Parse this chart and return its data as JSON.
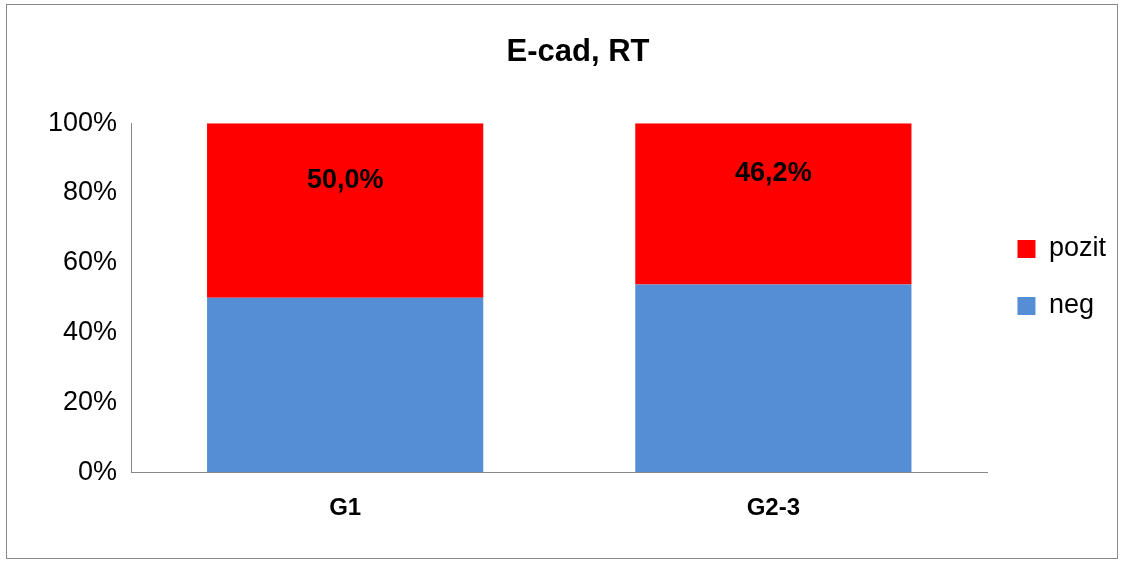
{
  "chart_data": {
    "type": "bar",
    "title": "E-cad, RT",
    "categories": [
      "G1",
      "G2-3"
    ],
    "stacked": true,
    "series": [
      {
        "name": "neg",
        "color": "#558ed5",
        "values": [
          50,
          53.8
        ]
      },
      {
        "name": "pozit",
        "color": "#ff0000",
        "values": [
          50,
          46.2
        ],
        "value_labels": [
          "50,0%",
          "46,2%"
        ]
      }
    ],
    "ylim": [
      0,
      100
    ],
    "yticks": [
      {
        "value": 0,
        "label": "0%"
      },
      {
        "value": 20,
        "label": "20%"
      },
      {
        "value": 40,
        "label": "40%"
      },
      {
        "value": 60,
        "label": "60%"
      },
      {
        "value": 80,
        "label": "80%"
      },
      {
        "value": 100,
        "label": "100%"
      }
    ],
    "grid": false,
    "legend": "right"
  }
}
